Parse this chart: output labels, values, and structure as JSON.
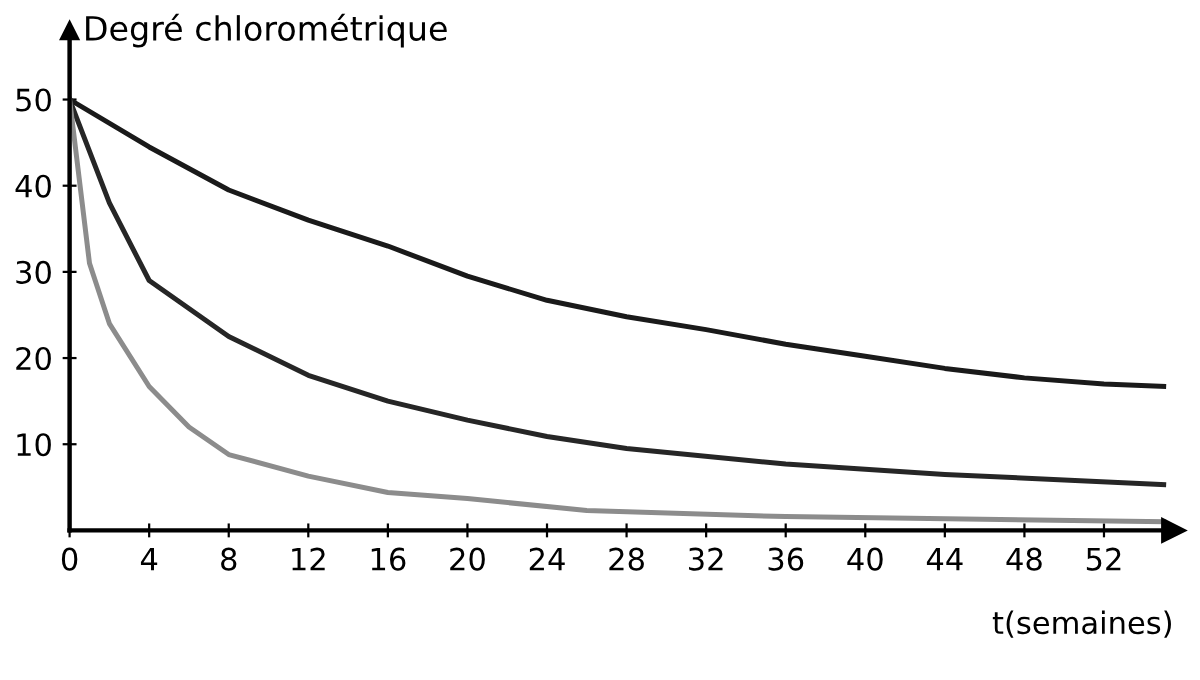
{
  "chart_data": {
    "type": "line",
    "ylabel": "Degré chlorométrique",
    "xlabel": "t(semaines)",
    "xlim": [
      0,
      55.5
    ],
    "ylim": [
      0,
      58
    ],
    "xticks": [
      0,
      4,
      8,
      12,
      16,
      20,
      24,
      28,
      32,
      36,
      40,
      44,
      48,
      52
    ],
    "yticks": [
      10,
      20,
      30,
      40,
      50
    ],
    "grid": false,
    "legend": false,
    "marker": "none",
    "line_style": "solid",
    "series": [
      {
        "color": "#1a1a1a",
        "x": [
          0,
          4,
          8,
          12,
          16,
          20,
          24,
          28,
          32,
          36,
          40,
          44,
          48,
          52,
          55
        ],
        "values": [
          50,
          44.5,
          39.5,
          36,
          33,
          29.5,
          26.7,
          24.8,
          23.3,
          21.6,
          20.2,
          18.8,
          17.7,
          17,
          16.7
        ]
      },
      {
        "color": "#262626",
        "x": [
          0,
          2,
          4,
          8,
          12,
          16,
          20,
          24,
          28,
          36,
          44,
          55
        ],
        "values": [
          50,
          38,
          29,
          22.5,
          18,
          15,
          12.8,
          10.9,
          9.5,
          7.7,
          6.5,
          5.3
        ]
      },
      {
        "color": "#8c8c8c",
        "x": [
          0,
          1,
          2,
          4,
          6,
          8,
          12,
          16,
          20,
          26,
          36,
          55
        ],
        "values": [
          50,
          31,
          24,
          16.7,
          12,
          8.8,
          6.3,
          4.4,
          3.7,
          2.3,
          1.6,
          1
        ]
      }
    ]
  }
}
